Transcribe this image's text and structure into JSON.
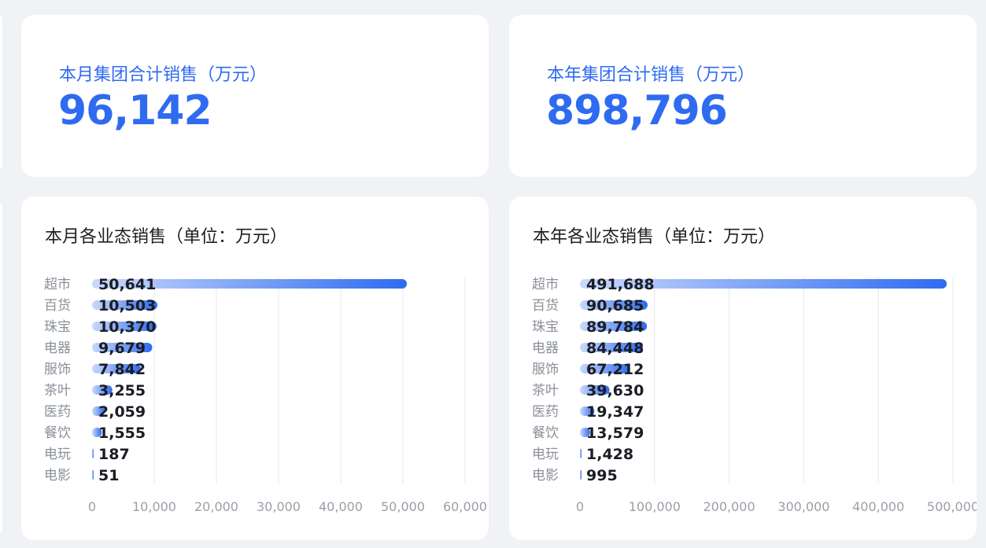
{
  "kpis": {
    "month": {
      "label": "本月集团合计销售（万元）",
      "value": "96,142"
    },
    "year": {
      "label": "本年集团合计销售（万元）",
      "value": "898,796"
    }
  },
  "chart_data": [
    {
      "type": "bar",
      "orientation": "horizontal",
      "title": "本月各业态销售（单位：万元）",
      "categories": [
        "超市",
        "百货",
        "珠宝",
        "电器",
        "服饰",
        "茶叶",
        "医药",
        "餐饮",
        "电玩",
        "电影"
      ],
      "values": [
        50641,
        10503,
        10370,
        9679,
        7842,
        3255,
        2059,
        1555,
        187,
        51
      ],
      "value_labels": [
        "50,641",
        "10,503",
        "10,370",
        "9,679",
        "7,842",
        "3,255",
        "2,059",
        "1,555",
        "187",
        "51"
      ],
      "xlim": [
        0,
        60000
      ],
      "xticks": [
        0,
        10000,
        20000,
        30000,
        40000,
        50000,
        60000
      ],
      "xtick_labels": [
        "0",
        "10,000",
        "20,000",
        "30,000",
        "40,000",
        "50,000",
        "60,000"
      ],
      "grid": "vertical",
      "bar_color": "#2f6bf0"
    },
    {
      "type": "bar",
      "orientation": "horizontal",
      "title": "本年各业态销售（单位：万元）",
      "categories": [
        "超市",
        "百货",
        "珠宝",
        "电器",
        "服饰",
        "茶叶",
        "医药",
        "餐饮",
        "电玩",
        "电影"
      ],
      "values": [
        491688,
        90685,
        89784,
        84448,
        67212,
        39630,
        19347,
        13579,
        1428,
        995
      ],
      "value_labels": [
        "491,688",
        "90,685",
        "89,784",
        "84,448",
        "67,212",
        "39,630",
        "19,347",
        "13,579",
        "1,428",
        "995"
      ],
      "xlim": [
        0,
        500000
      ],
      "xticks": [
        0,
        100000,
        200000,
        300000,
        400000,
        500000
      ],
      "xtick_labels": [
        "0",
        "100,000",
        "200,000",
        "300,000",
        "400,000",
        "500,000"
      ],
      "grid": "vertical",
      "bar_color": "#2f6bf0"
    }
  ]
}
